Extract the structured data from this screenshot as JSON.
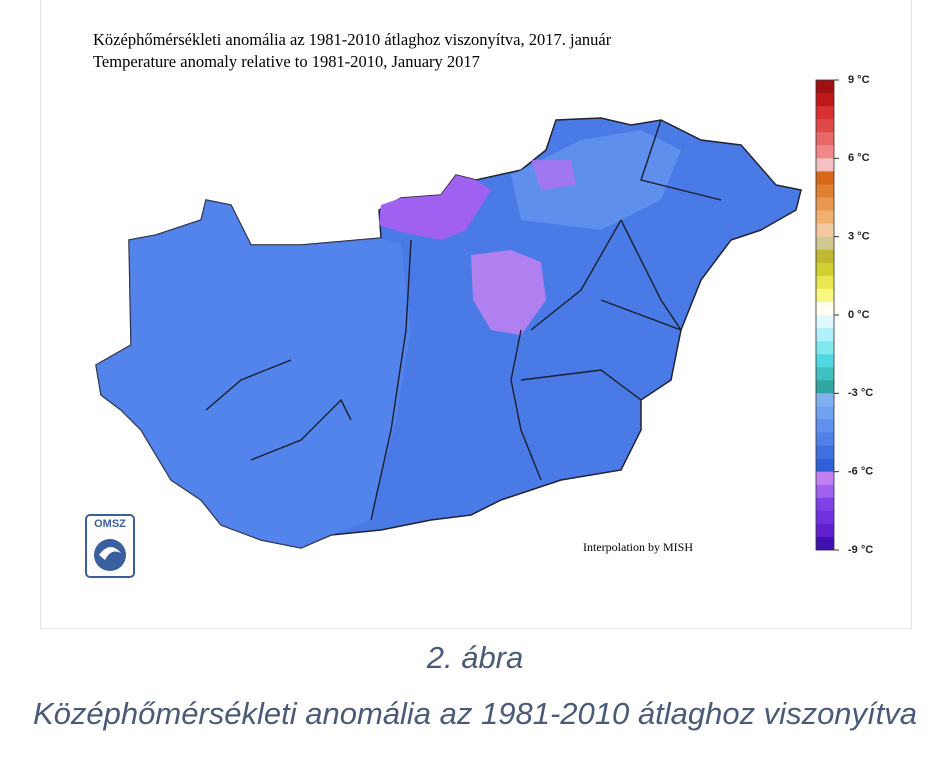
{
  "figure": {
    "title_hu": "Középhőmérsékleti anomália az 1981-2010 átlaghoz viszonyítva, 2017. január",
    "title_en": "Temperature anomaly relative to 1981-2010, January 2017",
    "credit": "Interpolation by MISH",
    "logo": "OMSZ",
    "legend": {
      "ticks": [
        {
          "value": 9,
          "label": "9 °C"
        },
        {
          "value": 6,
          "label": "6 °C"
        },
        {
          "value": 3,
          "label": "3 °C"
        },
        {
          "value": 0,
          "label": "0 °C"
        },
        {
          "value": -3,
          "label": "-3 °C"
        },
        {
          "value": -6,
          "label": "-6 °C"
        },
        {
          "value": -9,
          "label": "-9 °C"
        }
      ],
      "colors": [
        "#a01010",
        "#c01818",
        "#d83030",
        "#e04848",
        "#e86868",
        "#f08888",
        "#f4c0c0",
        "#d86818",
        "#e08030",
        "#e89850",
        "#f0b070",
        "#f4c8a0",
        "#d0c890",
        "#c0b830",
        "#d0d030",
        "#e8e850",
        "#f8f880",
        "#fffff0",
        "#e0f8ff",
        "#b0f0f8",
        "#80e8f0",
        "#50d8e0",
        "#40c0c0",
        "#30a8a0",
        "#80b0f0",
        "#70a0f0",
        "#6090f0",
        "#5080e8",
        "#4070e0",
        "#3060d8",
        "#c080f0",
        "#a060f0",
        "#8040e8",
        "#7030e0",
        "#6020d0",
        "#4010b0"
      ]
    }
  },
  "caption": {
    "number": "2. ábra",
    "text": "Középhőmérsékleti anomália az 1981-2010 átlaghoz viszonyítva"
  }
}
